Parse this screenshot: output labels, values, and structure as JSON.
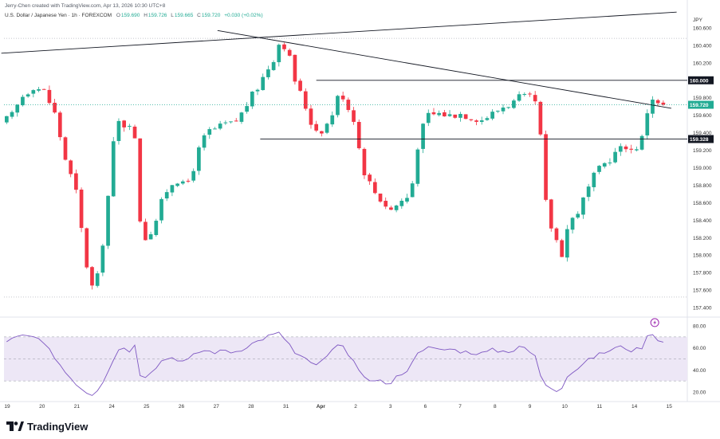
{
  "header": {
    "attribution": "Jerry-Chen created with TradingView.com, Apr 13, 2026 10:30 UTC+8"
  },
  "legend": {
    "symbol": "U.S. Dollar / Japanese Yen · 1h · FOREXCOM",
    "open_label": "O",
    "open": "159.690",
    "high_label": "H",
    "high": "159.726",
    "low_label": "L",
    "low": "159.665",
    "close_label": "C",
    "close": "159.720",
    "change": "+0.030 (+0.02%)"
  },
  "colors": {
    "up": "#22ab94",
    "down": "#f23645",
    "rsi_line": "#7e57c2",
    "rsi_band": "#ede7f6",
    "trendline": "#131722",
    "last_price": "#22ab94"
  },
  "chart_data": {
    "type": "candlestick",
    "currency": "JPY",
    "price_axis": {
      "ylim": [
        157.3,
        160.7
      ],
      "ticks": [
        "160.600",
        "160.400",
        "160.200",
        "159.800",
        "159.600",
        "159.400",
        "159.200",
        "159.000",
        "158.800",
        "158.600",
        "158.400",
        "158.200",
        "158.000",
        "157.800",
        "157.600",
        "157.400"
      ]
    },
    "x_ticks": [
      "19",
      "20",
      "21",
      "24",
      "25",
      "26",
      "27",
      "28",
      "31",
      "Apr",
      "2",
      "3",
      "6",
      "7",
      "8",
      "9",
      "10",
      "11",
      "14",
      "15"
    ],
    "price_path": [
      [
        0,
        159.51
      ],
      [
        2,
        159.6
      ],
      [
        4,
        159.82
      ],
      [
        6,
        159.93
      ],
      [
        8,
        159.88
      ],
      [
        10,
        159.62
      ],
      [
        12,
        159.1
      ],
      [
        14,
        158.72
      ],
      [
        15.5,
        158.08
      ],
      [
        16.5,
        157.68
      ],
      [
        17.5,
        157.6
      ],
      [
        18.5,
        157.9
      ],
      [
        19.5,
        158.4
      ],
      [
        20.5,
        158.95
      ],
      [
        21.2,
        159.4
      ],
      [
        22,
        159.52
      ],
      [
        23,
        159.49
      ],
      [
        23.5,
        159.47
      ],
      [
        24,
        159.52
      ],
      [
        24.5,
        159.58
      ],
      [
        24.9,
        159.62
      ],
      [
        25.1,
        159.0
      ],
      [
        25.3,
        158.52
      ],
      [
        26,
        158.41
      ],
      [
        27,
        158.2
      ],
      [
        28.5,
        158.31
      ],
      [
        30,
        158.6
      ],
      [
        31.5,
        158.81
      ],
      [
        33,
        158.86
      ],
      [
        34.5,
        158.77
      ],
      [
        36,
        159.0
      ],
      [
        37.5,
        159.3
      ],
      [
        39,
        159.42
      ],
      [
        40.5,
        159.45
      ],
      [
        42,
        159.5
      ],
      [
        43.5,
        159.5
      ],
      [
        45,
        159.62
      ],
      [
        46.5,
        159.78
      ],
      [
        48,
        159.92
      ],
      [
        49.5,
        160.09
      ],
      [
        51,
        160.25
      ],
      [
        52,
        160.42
      ],
      [
        53,
        160.4
      ],
      [
        53.5,
        160.36
      ],
      [
        54,
        160.25
      ],
      [
        55,
        160.0
      ],
      [
        56.5,
        159.78
      ],
      [
        58,
        159.52
      ],
      [
        59.5,
        159.4
      ],
      [
        61,
        159.5
      ],
      [
        62,
        159.62
      ],
      [
        63,
        159.8
      ],
      [
        64,
        159.82
      ],
      [
        65,
        159.68
      ],
      [
        65.8,
        159.62
      ],
      [
        66.5,
        159.42
      ],
      [
        67.5,
        159.03
      ],
      [
        68.5,
        158.88
      ],
      [
        70,
        158.72
      ],
      [
        71.5,
        158.6
      ],
      [
        73,
        158.52
      ],
      [
        74.5,
        158.6
      ],
      [
        76,
        158.66
      ],
      [
        76.8,
        158.72
      ],
      [
        77.5,
        159.1
      ],
      [
        78.5,
        159.4
      ],
      [
        80,
        159.6
      ],
      [
        82,
        159.62
      ],
      [
        84,
        159.6
      ],
      [
        86,
        159.62
      ],
      [
        88,
        159.58
      ],
      [
        90,
        159.55
      ],
      [
        92,
        159.62
      ],
      [
        94,
        159.7
      ],
      [
        96,
        159.75
      ],
      [
        97,
        159.8
      ],
      [
        98,
        159.8
      ],
      [
        99,
        159.8
      ],
      [
        100,
        159.74
      ],
      [
        100.9,
        159.52
      ],
      [
        101.2,
        159.0
      ],
      [
        102,
        158.6
      ],
      [
        103,
        158.32
      ],
      [
        104,
        158.17
      ],
      [
        105,
        158.02
      ],
      [
        106,
        158.3
      ],
      [
        107,
        158.42
      ],
      [
        108,
        158.5
      ],
      [
        109.5,
        158.7
      ],
      [
        111,
        158.9
      ],
      [
        112.5,
        159.02
      ],
      [
        114,
        159.1
      ],
      [
        115.5,
        159.2
      ],
      [
        117,
        159.25
      ],
      [
        118.5,
        159.18
      ],
      [
        119.5,
        159.3
      ],
      [
        120.5,
        159.38
      ],
      [
        121.2,
        159.75
      ],
      [
        122,
        159.8
      ],
      [
        123,
        159.72
      ]
    ],
    "horizontal_levels": [
      {
        "label": "160.000",
        "price": 160.0
      },
      {
        "label": "159.328",
        "price": 159.328
      }
    ],
    "trendlines": [
      {
        "name": "rising-line",
        "from": [
          -1,
          160.31
        ],
        "to": [
          125.5,
          160.78
        ]
      },
      {
        "name": "falling-line",
        "from": [
          39.5,
          160.57
        ],
        "to": [
          124.5,
          159.68
        ]
      }
    ],
    "last_price": {
      "label": "159.720",
      "price": 159.72
    },
    "rsi": {
      "ylim": [
        12,
        88
      ],
      "upper": 70,
      "middle": 50,
      "lower": 30,
      "ticks": [
        "80.00",
        "60.00",
        "40.00",
        "20.00"
      ],
      "path": [
        [
          0,
          61
        ],
        [
          2,
          68
        ],
        [
          4,
          71
        ],
        [
          6,
          70
        ],
        [
          8,
          63
        ],
        [
          10,
          52
        ],
        [
          12,
          38
        ],
        [
          14,
          28
        ],
        [
          15.5,
          21
        ],
        [
          17,
          18
        ],
        [
          18.5,
          25
        ],
        [
          20,
          40
        ],
        [
          21.5,
          55
        ],
        [
          22.5,
          62
        ],
        [
          24,
          58
        ],
        [
          25,
          62
        ],
        [
          25.5,
          37
        ],
        [
          27,
          35
        ],
        [
          28.5,
          41
        ],
        [
          30,
          48
        ],
        [
          31.5,
          52
        ],
        [
          33,
          50
        ],
        [
          34.5,
          47
        ],
        [
          36,
          53
        ],
        [
          37.5,
          58
        ],
        [
          39,
          57
        ],
        [
          40.5,
          56
        ],
        [
          42,
          58
        ],
        [
          43.5,
          56
        ],
        [
          45,
          59
        ],
        [
          46.5,
          63
        ],
        [
          48,
          66
        ],
        [
          49.5,
          70
        ],
        [
          51,
          72
        ],
        [
          52,
          73
        ],
        [
          53,
          69
        ],
        [
          54,
          63
        ],
        [
          55,
          55
        ],
        [
          56.5,
          51
        ],
        [
          58,
          46
        ],
        [
          59.5,
          45
        ],
        [
          61,
          52
        ],
        [
          62,
          58
        ],
        [
          63,
          61
        ],
        [
          64,
          60
        ],
        [
          65,
          55
        ],
        [
          66,
          48
        ],
        [
          67.5,
          33
        ],
        [
          68.5,
          31
        ],
        [
          70,
          32
        ],
        [
          71.5,
          29
        ],
        [
          73,
          27
        ],
        [
          74.5,
          36
        ],
        [
          76,
          40
        ],
        [
          76.8,
          43
        ],
        [
          77.5,
          55
        ],
        [
          78.5,
          59
        ],
        [
          80,
          60
        ],
        [
          82,
          58
        ],
        [
          84,
          59
        ],
        [
          86,
          57
        ],
        [
          88,
          56
        ],
        [
          90,
          55
        ],
        [
          92,
          58
        ],
        [
          94,
          57
        ],
        [
          96,
          58
        ],
        [
          97,
          62
        ],
        [
          98,
          59
        ],
        [
          99,
          56
        ],
        [
          100,
          53
        ],
        [
          101,
          34
        ],
        [
          102,
          27
        ],
        [
          103,
          24
        ],
        [
          104,
          22
        ],
        [
          105,
          25
        ],
        [
          106,
          35
        ],
        [
          107,
          38
        ],
        [
          108,
          42
        ],
        [
          109.5,
          47
        ],
        [
          111,
          52
        ],
        [
          112.5,
          55
        ],
        [
          114,
          58
        ],
        [
          115.5,
          61
        ],
        [
          117,
          60
        ],
        [
          118.5,
          57
        ],
        [
          119.5,
          60
        ],
        [
          120.5,
          62
        ],
        [
          121.2,
          73
        ],
        [
          121.8,
          76
        ],
        [
          122.4,
          70
        ],
        [
          123,
          67
        ]
      ]
    }
  },
  "footer": {
    "logo_text": "TradingView"
  }
}
